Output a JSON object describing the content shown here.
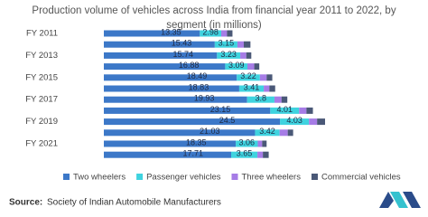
{
  "chart_data": {
    "type": "stacked-bar-horizontal",
    "title": "Production volume of vehicles across India from financial year 2011 to 2022, by",
    "subtitle": "segment (in millions)",
    "categories": [
      "FY 2011",
      null,
      "FY 2013",
      null,
      "FY 2015",
      null,
      "FY 2017",
      null,
      "FY 2019",
      null,
      "FY 2021",
      null
    ],
    "series": [
      {
        "name": "Two wheelers",
        "color": "#3c78c8",
        "values": [
          13.35,
          15.43,
          15.74,
          16.88,
          18.49,
          18.83,
          19.93,
          23.15,
          24.5,
          21.03,
          18.35,
          17.71
        ]
      },
      {
        "name": "Passenger vehicles",
        "color": "#3fd3df",
        "values": [
          2.98,
          3.15,
          3.23,
          3.09,
          3.22,
          3.41,
          3.8,
          4.01,
          4.03,
          3.42,
          3.06,
          3.65
        ]
      },
      {
        "name": "Three wheelers",
        "color": "#a67ce6",
        "values": [
          0.8,
          0.88,
          0.84,
          0.95,
          0.93,
          0.78,
          0.98,
          1.02,
          1.13,
          1.13,
          0.61,
          0.76
        ]
      },
      {
        "name": "Commercial vehicles",
        "color": "#4a5877",
        "values": [
          0.76,
          0.93,
          0.7,
          0.7,
          0.79,
          0.81,
          0.81,
          0.9,
          1.11,
          0.75,
          0.62,
          0.81
        ]
      }
    ],
    "labeled_series": [
      0,
      1
    ],
    "source_label": "Source:",
    "source": "Society of Indian Automobile Manufacturers"
  }
}
